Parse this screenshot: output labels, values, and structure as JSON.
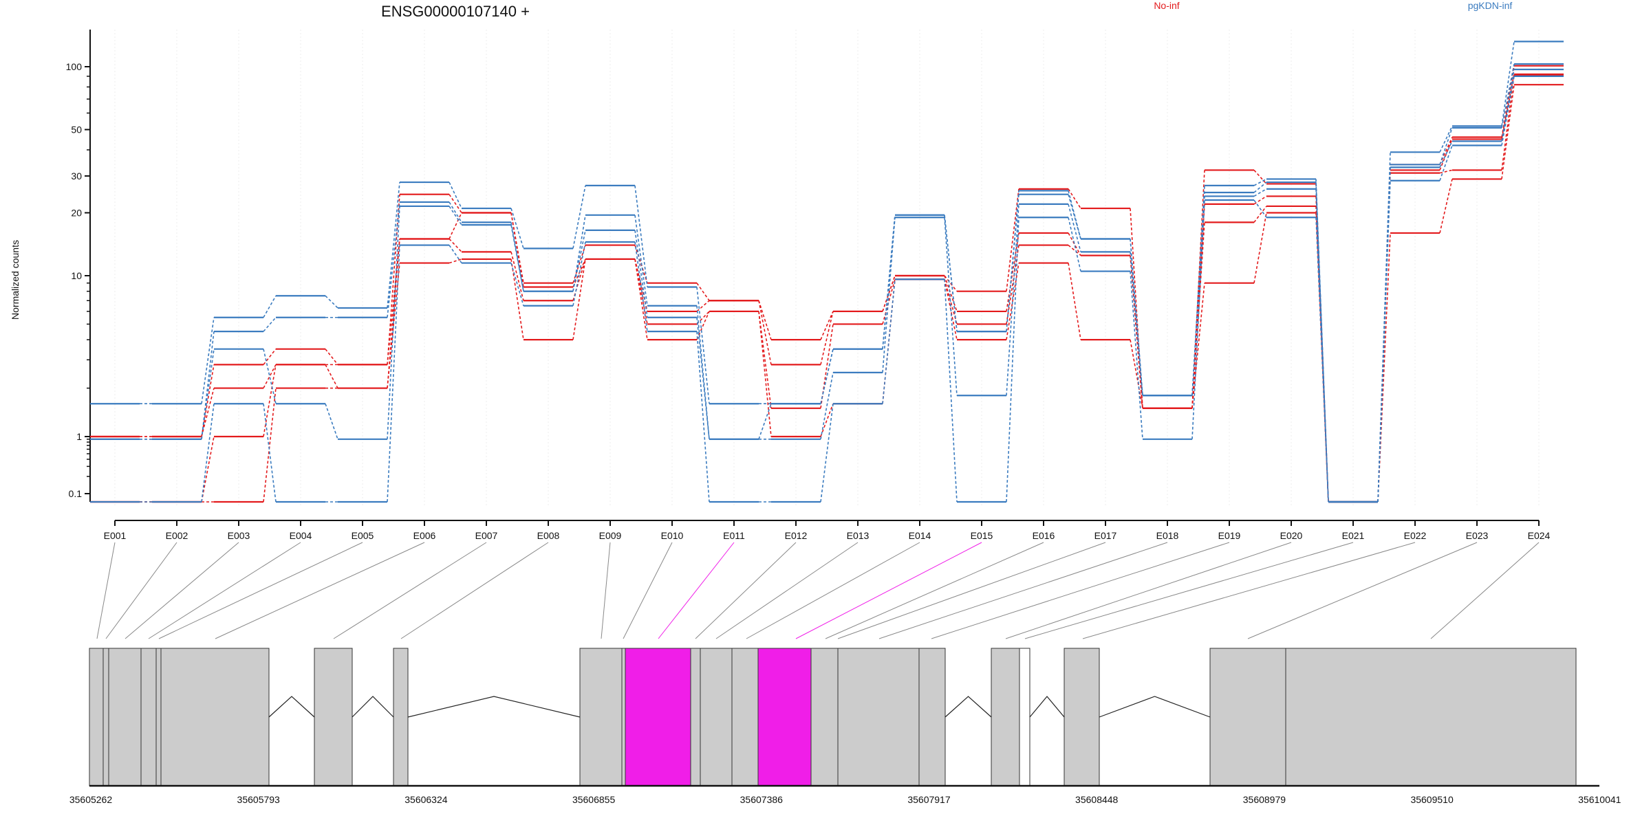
{
  "chart_data": {
    "type": "line",
    "title": "ENSG00000107140 +",
    "ylabel": "Normalized counts",
    "xlabel": "",
    "y_scale": "log",
    "y_ticks": [
      "100",
      "50",
      "30",
      "20",
      "10",
      "1",
      "0.1"
    ],
    "categories": [
      "E001",
      "E002",
      "E003",
      "E004",
      "E005",
      "E006",
      "E007",
      "E008",
      "E009",
      "E010",
      "E011",
      "E012",
      "E013",
      "E014",
      "E015",
      "E016",
      "E017",
      "E018",
      "E019",
      "E020",
      "E021",
      "E022",
      "E023",
      "E024"
    ],
    "legend": [
      {
        "label": "No-inf",
        "color": "#e31a1c"
      },
      {
        "label": "pgKDN-inf",
        "color": "#3a7bbf"
      }
    ],
    "legend_placement": "top-right",
    "series": [
      {
        "name": "No-inf",
        "color": "#e31a1c",
        "values": [
          1,
          1,
          2.8,
          3.5,
          2.8,
          24.5,
          20,
          9,
          14,
          9,
          7,
          4,
          6,
          10,
          8,
          26,
          21,
          1.5,
          32,
          27.5,
          0,
          34,
          46,
          101
        ]
      },
      {
        "name": "No-inf",
        "color": "#e31a1c",
        "values": [
          1,
          1,
          2.0,
          2.8,
          2.8,
          15,
          20,
          8.5,
          12,
          6,
          7,
          2.8,
          6,
          10,
          6,
          16,
          12.5,
          1.5,
          22,
          24,
          0,
          32,
          45,
          92
        ]
      },
      {
        "name": "No-inf",
        "color": "#e31a1c",
        "values": [
          0,
          0,
          1.0,
          2.8,
          2.0,
          15,
          13,
          7,
          12,
          5,
          6,
          1.5,
          5,
          9.5,
          5,
          14,
          12.5,
          1.5,
          18,
          21.5,
          0,
          31,
          32,
          91
        ]
      },
      {
        "name": "No-inf",
        "color": "#e31a1c",
        "values": [
          0,
          0,
          0,
          2.0,
          2.0,
          11.5,
          12,
          4,
          12,
          4,
          6,
          1.0,
          1.6,
          9.5,
          4,
          11.5,
          4,
          1.5,
          9,
          20,
          0,
          16,
          29,
          82
        ]
      },
      {
        "name": "pgKDN-inf",
        "color": "#3a7bbf",
        "values": [
          1.6,
          1.6,
          5.5,
          7.5,
          6.3,
          28,
          21,
          13.5,
          27,
          8.5,
          1.6,
          1.6,
          3.5,
          19.5,
          4.5,
          25.5,
          15,
          1.8,
          27,
          29,
          0,
          39,
          52,
          132
        ]
      },
      {
        "name": "pgKDN-inf",
        "color": "#3a7bbf",
        "values": [
          0.9,
          0.9,
          4.5,
          5.5,
          5.5,
          22.5,
          18,
          8,
          19.5,
          6.5,
          0.9,
          1.6,
          3.5,
          19.5,
          4.5,
          24.5,
          15,
          1.8,
          25,
          28,
          0,
          34,
          51,
          103
        ]
      },
      {
        "name": "pgKDN-inf",
        "color": "#3a7bbf",
        "values": [
          0.9,
          0.9,
          3.5,
          1.6,
          0.9,
          21.5,
          17.5,
          8,
          16.5,
          5.5,
          0.9,
          0.9,
          2.5,
          19,
          1.8,
          22,
          13,
          1.8,
          24,
          26,
          0,
          33,
          44,
          97
        ]
      },
      {
        "name": "pgKDN-inf",
        "color": "#3a7bbf",
        "values": [
          0,
          0,
          1.6,
          0,
          0,
          14,
          11.5,
          6.5,
          14.5,
          4.5,
          0,
          0,
          1.6,
          9.5,
          0,
          19,
          10.5,
          0.9,
          23,
          19,
          0,
          28.5,
          42,
          90
        ]
      }
    ],
    "gene_model": {
      "highlight_color": "#f01ee8",
      "highlighted_exons": [
        "E011",
        "E015"
      ],
      "genomic_ticks": [
        "35605262",
        "35605793",
        "35606324",
        "35606855",
        "35607386",
        "35607917",
        "35608448",
        "35608979",
        "35609510",
        "35610041"
      ]
    }
  }
}
